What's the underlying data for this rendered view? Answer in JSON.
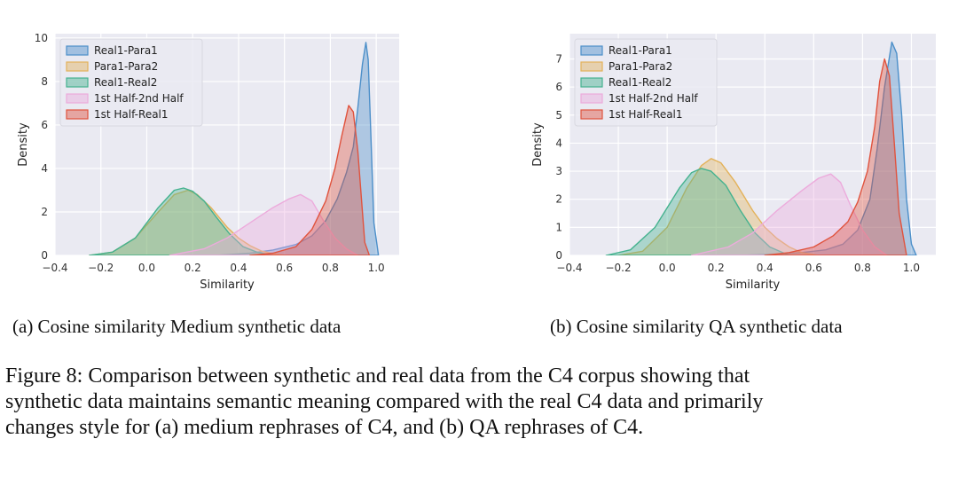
{
  "legend_labels": [
    "Real1-Para1",
    "Para1-Para2",
    "Real1-Real2",
    "1st Half-2nd Half",
    "1st Half-Real1"
  ],
  "series_colors": [
    "#4c8fc9",
    "#e3b25a",
    "#45b28f",
    "#ecabdc",
    "#e0533e"
  ],
  "panel_captions": [
    "(a) Cosine similarity Medium synthetic data",
    "(b) Cosine similarity QA synthetic data"
  ],
  "figure_caption_lines": [
    "Figure 8: Comparison between synthetic and real data from the C4 corpus showing that",
    "synthetic data maintains semantic meaning compared with the real C4 data and primarily",
    "changes style for (a) medium rephrases of C4, and (b) QA rephrases of C4."
  ],
  "chart_data": [
    {
      "type": "area",
      "xlabel": "Similarity",
      "ylabel": "Density",
      "xlim": [
        -0.4,
        1.1
      ],
      "ylim": [
        0,
        10.2
      ],
      "xticks": [
        "−0.4",
        "−0.2",
        "0.0",
        "0.2",
        "0.4",
        "0.6",
        "0.8",
        "1.0"
      ],
      "yticks": [
        "0",
        "2",
        "4",
        "6",
        "8",
        "10"
      ],
      "grid": true,
      "legend_position": "top-left",
      "series": [
        {
          "name": "Real1-Para1",
          "x": [
            0.3,
            0.45,
            0.55,
            0.65,
            0.72,
            0.78,
            0.83,
            0.87,
            0.9,
            0.92,
            0.94,
            0.955,
            0.965,
            0.975,
            0.99,
            1.01
          ],
          "y": [
            0,
            0.1,
            0.25,
            0.5,
            0.9,
            1.6,
            2.6,
            3.8,
            5.0,
            6.8,
            8.8,
            9.8,
            9.0,
            6.0,
            1.5,
            0
          ]
        },
        {
          "name": "Para1-Para2",
          "x": [
            -0.25,
            -0.15,
            -0.05,
            0.05,
            0.12,
            0.18,
            0.22,
            0.28,
            0.35,
            0.4,
            0.45,
            0.5,
            0.55,
            0.6
          ],
          "y": [
            0,
            0.15,
            0.8,
            2.0,
            2.8,
            3.0,
            2.8,
            2.2,
            1.3,
            0.8,
            0.45,
            0.2,
            0.08,
            0
          ]
        },
        {
          "name": "Real1-Real2",
          "x": [
            -0.25,
            -0.15,
            -0.05,
            0.05,
            0.12,
            0.16,
            0.2,
            0.25,
            0.3,
            0.36,
            0.42,
            0.48,
            0.55
          ],
          "y": [
            0,
            0.15,
            0.8,
            2.2,
            3.0,
            3.1,
            2.95,
            2.5,
            1.8,
            1.0,
            0.4,
            0.15,
            0
          ]
        },
        {
          "name": "1st Half-2nd Half",
          "x": [
            0.1,
            0.25,
            0.35,
            0.45,
            0.55,
            0.62,
            0.67,
            0.72,
            0.77,
            0.82,
            0.87,
            0.92
          ],
          "y": [
            0,
            0.3,
            0.8,
            1.5,
            2.2,
            2.6,
            2.8,
            2.5,
            1.6,
            0.8,
            0.3,
            0
          ]
        },
        {
          "name": "1st Half-Real1",
          "x": [
            0.45,
            0.55,
            0.65,
            0.72,
            0.78,
            0.82,
            0.85,
            0.88,
            0.9,
            0.92,
            0.94,
            0.95,
            0.97
          ],
          "y": [
            0,
            0.1,
            0.4,
            1.2,
            2.5,
            4.0,
            5.5,
            6.9,
            6.6,
            4.8,
            2.0,
            0.6,
            0
          ]
        }
      ]
    },
    {
      "type": "area",
      "xlabel": "Similarity",
      "ylabel": "Density",
      "xlim": [
        -0.4,
        1.1
      ],
      "ylim": [
        0,
        7.9
      ],
      "xticks": [
        "−0.4",
        "−0.2",
        "0.0",
        "0.2",
        "0.4",
        "0.6",
        "0.8",
        "1.0"
      ],
      "yticks": [
        "0",
        "1",
        "2",
        "3",
        "4",
        "5",
        "6",
        "7"
      ],
      "grid": true,
      "legend_position": "top-left",
      "series": [
        {
          "name": "Real1-Para1",
          "x": [
            0.3,
            0.45,
            0.55,
            0.65,
            0.72,
            0.78,
            0.83,
            0.86,
            0.89,
            0.92,
            0.94,
            0.96,
            0.98,
            1.0,
            1.02
          ],
          "y": [
            0,
            0.05,
            0.1,
            0.2,
            0.4,
            0.9,
            2.0,
            3.8,
            6.0,
            7.6,
            7.2,
            5.0,
            2.0,
            0.4,
            0
          ]
        },
        {
          "name": "Para1-Para2",
          "x": [
            -0.2,
            -0.1,
            0.0,
            0.08,
            0.14,
            0.18,
            0.22,
            0.28,
            0.35,
            0.4,
            0.45,
            0.5,
            0.55,
            0.62
          ],
          "y": [
            0,
            0.15,
            1.0,
            2.4,
            3.2,
            3.45,
            3.3,
            2.6,
            1.6,
            1.0,
            0.6,
            0.3,
            0.1,
            0
          ]
        },
        {
          "name": "Real1-Real2",
          "x": [
            -0.25,
            -0.15,
            -0.05,
            0.05,
            0.1,
            0.14,
            0.18,
            0.24,
            0.3,
            0.36,
            0.42,
            0.5
          ],
          "y": [
            0,
            0.2,
            1.0,
            2.4,
            2.95,
            3.1,
            3.0,
            2.5,
            1.6,
            0.8,
            0.3,
            0
          ]
        },
        {
          "name": "1st Half-2nd Half",
          "x": [
            0.1,
            0.25,
            0.35,
            0.45,
            0.55,
            0.62,
            0.67,
            0.71,
            0.75,
            0.8,
            0.85,
            0.9
          ],
          "y": [
            0,
            0.3,
            0.8,
            1.6,
            2.3,
            2.75,
            2.9,
            2.6,
            1.8,
            0.9,
            0.3,
            0
          ]
        },
        {
          "name": "1st Half-Real1",
          "x": [
            0.4,
            0.5,
            0.6,
            0.68,
            0.74,
            0.78,
            0.82,
            0.85,
            0.87,
            0.89,
            0.91,
            0.93,
            0.95,
            0.98
          ],
          "y": [
            0,
            0.1,
            0.3,
            0.7,
            1.2,
            1.9,
            3.0,
            4.6,
            6.2,
            7.0,
            6.4,
            4.0,
            1.5,
            0
          ]
        }
      ]
    }
  ]
}
